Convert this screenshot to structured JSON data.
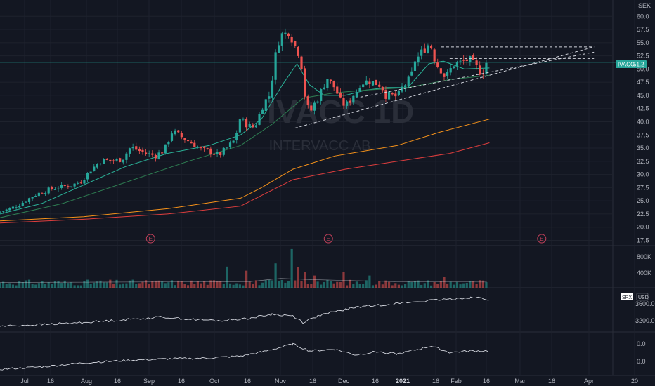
{
  "chart_data": {
    "type": "candlestick",
    "symbol": "IVACC",
    "interval": "1D",
    "company": "INTERVACC AB",
    "currency": "SEK",
    "last_price": "51.2",
    "price_axis": {
      "ylim": [
        16.5,
        61.5
      ],
      "ticks": [
        "17.5",
        "20.0",
        "22.5",
        "25.0",
        "27.5",
        "30.0",
        "32.5",
        "35.0",
        "37.5",
        "40.0",
        "42.5",
        "45.0",
        "47.5",
        "50.0",
        "52.5",
        "55.0",
        "57.5",
        "60.0"
      ]
    },
    "x_axis": {
      "labels": [
        "Jul",
        "16",
        "Aug",
        "16",
        "Sep",
        "16",
        "Oct",
        "16",
        "Nov",
        "16",
        "Dec",
        "16",
        "2021",
        "16",
        "Feb",
        "16",
        "Mar",
        "16",
        "Apr",
        "20"
      ]
    },
    "close_path": [
      [
        0,
        22.8
      ],
      [
        6,
        23.4
      ],
      [
        12,
        24.6
      ],
      [
        18,
        26.1
      ],
      [
        24,
        27.0
      ],
      [
        30,
        27.6
      ],
      [
        36,
        28.0
      ],
      [
        40,
        28.6
      ],
      [
        45,
        30.9
      ],
      [
        50,
        32.7
      ],
      [
        55,
        32.6
      ],
      [
        60,
        32.9
      ],
      [
        64,
        35.2
      ],
      [
        68,
        34.5
      ],
      [
        72,
        33.9
      ],
      [
        76,
        33.6
      ],
      [
        80,
        34.6
      ],
      [
        84,
        38.3
      ],
      [
        86,
        37.7
      ],
      [
        90,
        36.7
      ],
      [
        94,
        35.8
      ],
      [
        98,
        34.6
      ],
      [
        102,
        34.4
      ],
      [
        106,
        33.6
      ],
      [
        110,
        35.0
      ],
      [
        114,
        36.6
      ],
      [
        116,
        40.6
      ],
      [
        118,
        40.0
      ],
      [
        120,
        39.4
      ],
      [
        122,
        38.8
      ],
      [
        124,
        39.7
      ],
      [
        128,
        43.9
      ],
      [
        130,
        44.5
      ],
      [
        132,
        48.9
      ],
      [
        134,
        54.6
      ],
      [
        136,
        56.5
      ],
      [
        138,
        56.7
      ],
      [
        140,
        57.3
      ],
      [
        142,
        54.7
      ],
      [
        144,
        53.5
      ],
      [
        146,
        50.2
      ],
      [
        147,
        45.8
      ],
      [
        148,
        43.0
      ],
      [
        150,
        41.9
      ],
      [
        152,
        43.5
      ],
      [
        154,
        44.8
      ],
      [
        156,
        46.7
      ],
      [
        158,
        48.3
      ],
      [
        160,
        47.2
      ],
      [
        162,
        46.3
      ],
      [
        164,
        44.0
      ],
      [
        166,
        43.3
      ],
      [
        168,
        43.3
      ],
      [
        170,
        44.9
      ],
      [
        172,
        45.8
      ],
      [
        174,
        47.5
      ],
      [
        176,
        47.5
      ],
      [
        178,
        47.8
      ],
      [
        180,
        47.4
      ],
      [
        182,
        47.3
      ],
      [
        184,
        46.8
      ],
      [
        186,
        45.1
      ],
      [
        188,
        45.0
      ],
      [
        190,
        44.8
      ],
      [
        192,
        44.9
      ],
      [
        194,
        46.6
      ],
      [
        196,
        47.4
      ],
      [
        198,
        48.3
      ],
      [
        200,
        51.8
      ],
      [
        202,
        52.4
      ],
      [
        204,
        53.7
      ],
      [
        206,
        54.6
      ],
      [
        208,
        54.1
      ],
      [
        210,
        50.9
      ],
      [
        212,
        50.2
      ],
      [
        214,
        48.7
      ],
      [
        216,
        49.0
      ],
      [
        218,
        50.9
      ],
      [
        220,
        51.1
      ],
      [
        222,
        51.2
      ],
      [
        224,
        51.7
      ],
      [
        226,
        51.7
      ],
      [
        228,
        50.8
      ],
      [
        230,
        50.1
      ],
      [
        232,
        49.1
      ],
      [
        234,
        51.2
      ]
    ],
    "moving_averages": [
      {
        "color": "#2bb59a",
        "points": [
          [
            0,
            22.5
          ],
          [
            20,
            24.5
          ],
          [
            40,
            28.0
          ],
          [
            60,
            31.5
          ],
          [
            80,
            34.0
          ],
          [
            100,
            35.5
          ],
          [
            115,
            37.5
          ],
          [
            125,
            40.5
          ],
          [
            135,
            47.0
          ],
          [
            142,
            51.0
          ],
          [
            148,
            47.0
          ],
          [
            155,
            45.0
          ],
          [
            165,
            45.0
          ],
          [
            175,
            46.0
          ],
          [
            185,
            46.5
          ],
          [
            195,
            46.5
          ],
          [
            205,
            51.0
          ],
          [
            212,
            51.5
          ],
          [
            222,
            50.0
          ],
          [
            234,
            50.2
          ]
        ]
      },
      {
        "color": "#2e7d52",
        "points": [
          [
            0,
            21.8
          ],
          [
            30,
            24.5
          ],
          [
            60,
            28.5
          ],
          [
            90,
            32.5
          ],
          [
            115,
            35.5
          ],
          [
            130,
            39.5
          ],
          [
            145,
            44.5
          ],
          [
            160,
            45.5
          ],
          [
            175,
            46.0
          ],
          [
            195,
            46.5
          ],
          [
            215,
            48.0
          ],
          [
            234,
            48.8
          ]
        ]
      },
      {
        "color": "#f7931a",
        "points": [
          [
            0,
            21.2
          ],
          [
            40,
            22.0
          ],
          [
            80,
            23.5
          ],
          [
            115,
            25.5
          ],
          [
            125,
            27.5
          ],
          [
            140,
            31.0
          ],
          [
            160,
            33.5
          ],
          [
            190,
            35.5
          ],
          [
            210,
            38.0
          ],
          [
            234,
            40.5
          ]
        ]
      },
      {
        "color": "#e03e3e",
        "points": [
          [
            0,
            20.8
          ],
          [
            40,
            21.5
          ],
          [
            80,
            22.5
          ],
          [
            115,
            24.0
          ],
          [
            125,
            26.0
          ],
          [
            140,
            29.0
          ],
          [
            165,
            31.0
          ],
          [
            190,
            32.5
          ],
          [
            215,
            34.0
          ],
          [
            234,
            36.0
          ]
        ]
      }
    ],
    "trendlines": [
      {
        "from": [
          141,
          38.8
        ],
        "to": [
          284,
          54.2
        ],
        "style": "dashed"
      },
      {
        "from": [
          170,
          44.5
        ],
        "to": [
          284,
          53.2
        ],
        "style": "dashed"
      },
      {
        "from": [
          211,
          54.2
        ],
        "to": [
          284,
          54.2
        ],
        "style": "dashed"
      },
      {
        "from": [
          215,
          52.0
        ],
        "to": [
          284,
          52.0
        ],
        "style": "dashed"
      }
    ],
    "earnings_markers": [
      {
        "day": 72,
        "label": "E"
      },
      {
        "day": 157,
        "label": "E"
      },
      {
        "day": 259,
        "label": "E"
      }
    ],
    "volume_axis": {
      "ticks": [
        "800K",
        "400K"
      ]
    },
    "volume": {
      "spikes": [
        [
          108,
          520
        ],
        [
          118,
          420
        ],
        [
          131,
          600
        ],
        [
          139,
          950
        ],
        [
          140,
          700
        ],
        [
          142,
          500
        ],
        [
          145,
          380
        ],
        [
          150,
          300
        ],
        [
          164,
          380
        ],
        [
          176,
          300
        ],
        [
          212,
          260
        ],
        [
          234,
          240
        ]
      ],
      "baseline": 160
    },
    "spx_panel": {
      "label": "SPX",
      "currency": "USD",
      "ticks": [
        "3600.0",
        "3200.0"
      ],
      "ylim": [
        3150,
        3900
      ],
      "points": [
        [
          0,
          3230
        ],
        [
          20,
          3260
        ],
        [
          40,
          3300
        ],
        [
          60,
          3350
        ],
        [
          78,
          3400
        ],
        [
          90,
          3360
        ],
        [
          105,
          3330
        ],
        [
          120,
          3380
        ],
        [
          130,
          3450
        ],
        [
          140,
          3420
        ],
        [
          145,
          3300
        ],
        [
          152,
          3420
        ],
        [
          158,
          3480
        ],
        [
          170,
          3580
        ],
        [
          190,
          3650
        ],
        [
          205,
          3700
        ],
        [
          215,
          3730
        ],
        [
          225,
          3760
        ],
        [
          230,
          3750
        ],
        [
          234,
          3710
        ]
      ]
    },
    "relative_panel": {
      "ticks": [
        "0.0",
        "0.0"
      ],
      "points": [
        [
          0,
          0.12
        ],
        [
          20,
          0.18
        ],
        [
          40,
          0.28
        ],
        [
          60,
          0.34
        ],
        [
          80,
          0.38
        ],
        [
          100,
          0.4
        ],
        [
          115,
          0.45
        ],
        [
          125,
          0.55
        ],
        [
          135,
          0.68
        ],
        [
          140,
          0.75
        ],
        [
          148,
          0.58
        ],
        [
          160,
          0.62
        ],
        [
          170,
          0.48
        ],
        [
          180,
          0.56
        ],
        [
          190,
          0.5
        ],
        [
          200,
          0.62
        ],
        [
          206,
          0.7
        ],
        [
          215,
          0.54
        ],
        [
          225,
          0.58
        ],
        [
          234,
          0.58
        ]
      ]
    },
    "colors": {
      "background": "#131722",
      "grid": "#1e222d",
      "up": "#26a69a",
      "down": "#ef5350",
      "spx_line": "#d1d4dc",
      "badge": "#26a69a",
      "earnings": "#c2405a"
    }
  }
}
